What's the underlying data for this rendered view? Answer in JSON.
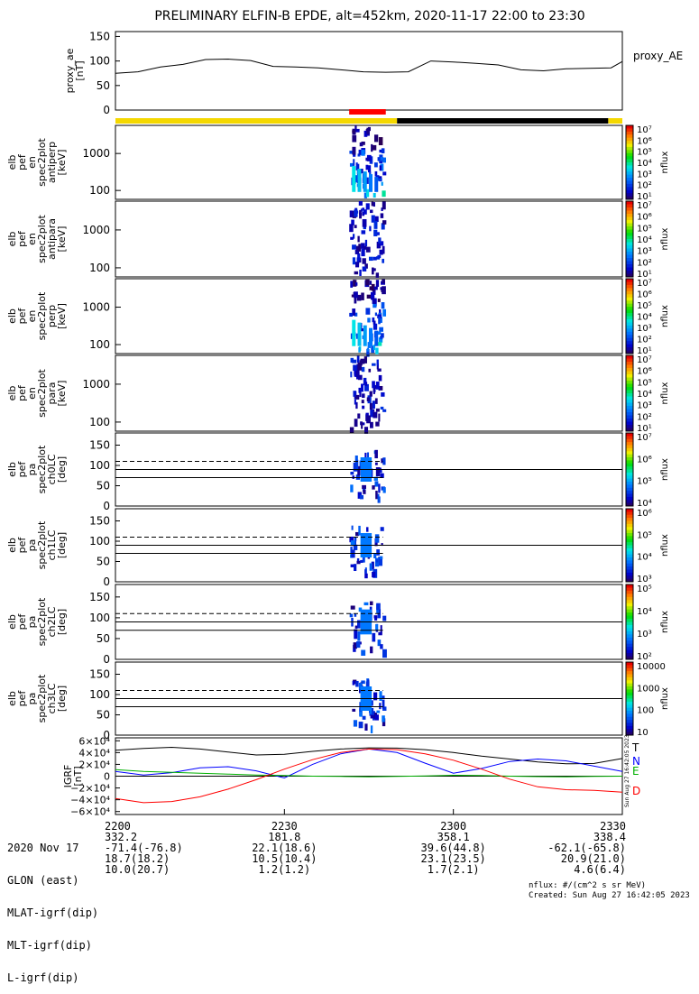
{
  "title": "PRELIMINARY ELFIN-B EPDE, alt=452km, 2020-11-17 22:00 to 23:30",
  "colors": {
    "yellow": "#f5d800",
    "black": "#000000",
    "red": "#ff0000",
    "blue": "#0000ff",
    "green": "#00b000"
  },
  "chart_data": [
    {
      "type": "line",
      "name": "proxy_ae",
      "ylabel": [
        "proxy_ae",
        "[nT]"
      ],
      "legend": "proxy_AE",
      "ylim": [
        0,
        160
      ],
      "yticks": [
        "150",
        "100",
        "50",
        "0"
      ],
      "x_min": [
        0,
        4,
        8,
        12,
        16,
        20,
        24,
        28,
        32,
        36,
        40,
        44,
        48,
        52,
        56,
        60,
        64,
        68,
        72,
        76,
        80,
        84,
        88,
        90
      ],
      "values": [
        75,
        78,
        88,
        93,
        103,
        104,
        101,
        89,
        88,
        86,
        82,
        78,
        77,
        78,
        100,
        98,
        95,
        92,
        82,
        80,
        84,
        85,
        86,
        99
      ]
    },
    {
      "type": "bar",
      "name": "region-bar",
      "segments": [
        {
          "from_min": 0,
          "to_min": 50,
          "color": "yellow"
        },
        {
          "from_min": 50,
          "to_min": 87.5,
          "color": "black"
        },
        {
          "from_min": 87.5,
          "to_min": 90,
          "color": "yellow"
        }
      ],
      "marker": {
        "from_min": 41.5,
        "to_min": 48,
        "color": "red"
      }
    },
    {
      "type": "heatmap",
      "name": "en-antiperp",
      "ylabel": [
        "elb",
        "pef",
        "en",
        "spec2plot",
        "antiperp",
        "[keV]"
      ],
      "yticks": [
        "1000",
        "100"
      ],
      "cbar": {
        "ticks": [
          "10⁷",
          "10⁶",
          "10⁵",
          "10⁴",
          "10³",
          "10²",
          "10¹"
        ],
        "label": "nflux"
      },
      "active_min": [
        41.5,
        47.5
      ]
    },
    {
      "type": "heatmap",
      "name": "en-antipara",
      "ylabel": [
        "elb",
        "pef",
        "en",
        "spec2plot",
        "antipara",
        "[keV]"
      ],
      "yticks": [
        "1000",
        "100"
      ],
      "cbar": {
        "ticks": [
          "10⁷",
          "10⁶",
          "10⁵",
          "10⁴",
          "10³",
          "10²",
          "10¹"
        ],
        "label": "nflux"
      },
      "active_min": [
        41.5,
        47.5
      ]
    },
    {
      "type": "heatmap",
      "name": "en-perp",
      "ylabel": [
        "elb",
        "pef",
        "en",
        "spec2plot",
        "perp",
        "[keV]"
      ],
      "yticks": [
        "1000",
        "100"
      ],
      "cbar": {
        "ticks": [
          "10⁷",
          "10⁶",
          "10⁵",
          "10⁴",
          "10³",
          "10²",
          "10¹"
        ],
        "label": "nflux"
      },
      "active_min": [
        41.5,
        47.5
      ]
    },
    {
      "type": "heatmap",
      "name": "en-para",
      "ylabel": [
        "elb",
        "pef",
        "en",
        "spec2plot",
        "para",
        "[keV]"
      ],
      "yticks": [
        "1000",
        "100"
      ],
      "cbar": {
        "ticks": [
          "10⁷",
          "10⁶",
          "10⁵",
          "10⁴",
          "10³",
          "10²",
          "10¹"
        ],
        "label": "nflux"
      },
      "active_min": [
        41.5,
        47.5
      ]
    },
    {
      "type": "heatmap",
      "name": "pa-ch0LC",
      "ylabel": [
        "elb",
        "pef",
        "pa",
        "spec2plot",
        "ch0LC",
        "[deg]"
      ],
      "yticks": [
        "150",
        "100",
        "50",
        "0"
      ],
      "ylim": [
        0,
        180
      ],
      "cbar": {
        "ticks": [
          "10⁷",
          "10⁶",
          "10⁵",
          "10⁴"
        ],
        "label": "nflux"
      },
      "lc_deg": [
        70,
        110
      ],
      "solid_deg": 90,
      "active_min": [
        41.5,
        47.5
      ]
    },
    {
      "type": "heatmap",
      "name": "pa-ch1LC",
      "ylabel": [
        "elb",
        "pef",
        "pa",
        "spec2plot",
        "ch1LC",
        "[deg]"
      ],
      "yticks": [
        "150",
        "100",
        "50",
        "0"
      ],
      "ylim": [
        0,
        180
      ],
      "cbar": {
        "ticks": [
          "10⁶",
          "10⁵",
          "10⁴",
          "10³"
        ],
        "label": "nflux"
      },
      "lc_deg": [
        70,
        110
      ],
      "solid_deg": 90,
      "active_min": [
        41.5,
        47.5
      ]
    },
    {
      "type": "heatmap",
      "name": "pa-ch2LC",
      "ylabel": [
        "elb",
        "pef",
        "pa",
        "spec2plot",
        "ch2LC",
        "[deg]"
      ],
      "yticks": [
        "150",
        "100",
        "50",
        "0"
      ],
      "ylim": [
        0,
        180
      ],
      "cbar": {
        "ticks": [
          "10⁵",
          "10⁴",
          "10³",
          "10²"
        ],
        "label": "nflux"
      },
      "lc_deg": [
        70,
        110
      ],
      "solid_deg": 90,
      "active_min": [
        41.5,
        47.5
      ]
    },
    {
      "type": "heatmap",
      "name": "pa-ch3LC",
      "ylabel": [
        "elb",
        "pef",
        "pa",
        "spec2plot",
        "ch3LC",
        "[deg]"
      ],
      "yticks": [
        "150",
        "100",
        "50",
        "0"
      ],
      "ylim": [
        0,
        180
      ],
      "cbar": {
        "ticks": [
          "10000",
          "1000",
          "100",
          "10"
        ],
        "label": "nflux"
      },
      "lc_deg": [
        70,
        110
      ],
      "solid_deg": 90,
      "active_min": [
        41.5,
        47.5
      ]
    },
    {
      "type": "line",
      "name": "igrf",
      "ylabel": [
        "IGRF",
        "[nT]"
      ],
      "ylim": [
        -65000,
        65000
      ],
      "yticks": [
        "6×10⁴",
        "4×10⁴",
        "2×10⁴",
        "0",
        "−2×10⁴",
        "−4×10⁴",
        "−6×10⁴"
      ],
      "x_min": [
        0,
        5,
        10,
        15,
        20,
        25,
        30,
        35,
        40,
        45,
        50,
        55,
        60,
        65,
        70,
        75,
        80,
        85,
        90
      ],
      "series": [
        {
          "name": "T",
          "color": "black",
          "values": [
            44000,
            47000,
            49000,
            46000,
            41000,
            36000,
            37000,
            42000,
            46000,
            48000,
            47500,
            45000,
            40000,
            34000,
            29000,
            24000,
            21000,
            21500,
            30000
          ]
        },
        {
          "name": "N",
          "color": "blue",
          "values": [
            8000,
            2000,
            6000,
            14000,
            16000,
            9000,
            -3000,
            20000,
            38000,
            46000,
            40000,
            22000,
            5000,
            13000,
            25000,
            29000,
            26000,
            17000,
            8000
          ]
        },
        {
          "name": "E",
          "color": "green",
          "values": [
            11000,
            8000,
            6500,
            5000,
            3500,
            2000,
            1000,
            0,
            -500,
            -1000,
            -500,
            500,
            1500,
            1000,
            0,
            -800,
            -1000,
            -500,
            0
          ]
        },
        {
          "name": "D",
          "color": "red",
          "values": [
            -38000,
            -45000,
            -43000,
            -35000,
            -22000,
            -6000,
            12000,
            28000,
            40000,
            46000,
            45000,
            38000,
            27000,
            12000,
            -5000,
            -18000,
            -23000,
            -24000,
            -27000
          ]
        }
      ]
    }
  ],
  "side_note": "Sun Aug 27 16:42:05 2023",
  "xaxis": {
    "labels": [
      "2020 Nov 17",
      "GLON (east)",
      "MLAT-igrf(dip)",
      "MLT-igrf(dip)",
      "L-igrf(dip)"
    ],
    "ticks": [
      {
        "time": "2200",
        "glon": "332.2",
        "mlat": "-71.4(-76.8)",
        "mlt": "18.7(18.2)",
        "l": "10.0(20.7)"
      },
      {
        "time": "2230",
        "glon": "181.8",
        "mlat": "22.1(18.6)",
        "mlt": "10.5(10.4)",
        "l": "1.2(1.2)"
      },
      {
        "time": "2300",
        "glon": "358.1",
        "mlat": "39.6(44.8)",
        "mlt": "23.1(23.5)",
        "l": "1.7(2.1)"
      },
      {
        "time": "2330",
        "glon": "338.4",
        "mlat": "-62.1(-65.8)",
        "mlt": "20.9(21.0)",
        "l": "4.6(6.4)"
      }
    ]
  },
  "footer": {
    "units": "nflux: #/(cm^2 s sr MeV)",
    "created": "Created: Sun Aug 27 16:42:05 2023"
  }
}
